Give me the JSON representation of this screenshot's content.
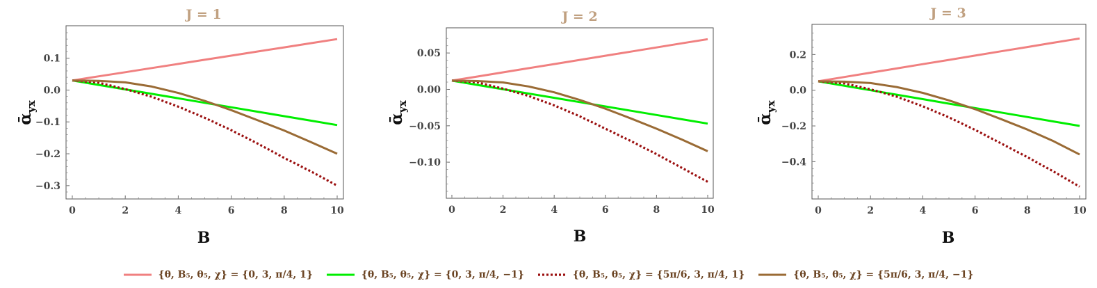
{
  "chart_data": [
    {
      "type": "line",
      "title": "J = 1",
      "xlabel": "B",
      "ylabel": "ᾱ",
      "ylabel_sub": "yx",
      "xlim": [
        0,
        10
      ],
      "ylim": [
        -0.32,
        0.18
      ],
      "xticks": [
        0,
        2,
        4,
        6,
        8,
        10
      ],
      "xtick_labels": [
        "0",
        "2",
        "4",
        "6",
        "8",
        "10"
      ],
      "yticks": [
        0.1,
        0.0,
        -0.1,
        -0.2,
        -0.3
      ],
      "ytick_labels": [
        "0.1",
        "0.0",
        "−0.1",
        "−0.2",
        "−0.3"
      ],
      "x": [
        0,
        1,
        2,
        3,
        4,
        5,
        6,
        7,
        8,
        9,
        10
      ],
      "series": [
        {
          "name": "{θ, B₅, θ₅, χ} = {0, 3, π/4, 1}",
          "color": "#f08080",
          "dash": "solid",
          "values": [
            0.03,
            0.043,
            0.056,
            0.069,
            0.082,
            0.095,
            0.108,
            0.121,
            0.134,
            0.147,
            0.16
          ]
        },
        {
          "name": "{θ, B₅, θ₅, χ} = {0, 3, π/4, −1}",
          "color": "#00ee00",
          "dash": "solid",
          "values": [
            0.03,
            0.016,
            0.002,
            -0.012,
            -0.026,
            -0.04,
            -0.054,
            -0.068,
            -0.082,
            -0.096,
            -0.11
          ]
        },
        {
          "name": "{θ, B₅, θ₅, χ} = {5π/6, 3, π/4, 1}",
          "color": "#9b1010",
          "dash": "dotted",
          "values": [
            0.03,
            0.023,
            0.003,
            -0.021,
            -0.052,
            -0.087,
            -0.126,
            -0.168,
            -0.213,
            -0.255,
            -0.3
          ]
        },
        {
          "name": "{θ, B₅, θ₅, χ} = {5π/6, 3, π/4, −1}",
          "color": "#9a6b35",
          "dash": "solid",
          "values": [
            0.03,
            0.029,
            0.024,
            0.011,
            -0.009,
            -0.034,
            -0.063,
            -0.095,
            -0.127,
            -0.163,
            -0.2
          ]
        }
      ]
    },
    {
      "type": "line",
      "title": "J = 2",
      "xlabel": "B",
      "ylabel": "ᾱ",
      "ylabel_sub": "yx",
      "xlim": [
        0,
        10
      ],
      "ylim": [
        -0.14,
        0.075
      ],
      "xticks": [
        0,
        2,
        4,
        6,
        8,
        10
      ],
      "xtick_labels": [
        "0",
        "2",
        "4",
        "6",
        "8",
        "10"
      ],
      "yticks": [
        0.05,
        0.0,
        -0.05,
        -0.1
      ],
      "ytick_labels": [
        "0.05",
        "0.00",
        "−0.05",
        "−0.10"
      ],
      "x": [
        0,
        1,
        2,
        3,
        4,
        5,
        6,
        7,
        8,
        9,
        10
      ],
      "series": [
        {
          "name": "{θ, B₅, θ₅, χ} = {0, 3, π/4, 1}",
          "color": "#f08080",
          "dash": "solid",
          "values": [
            0.012,
            0.0177,
            0.0234,
            0.0291,
            0.0348,
            0.0405,
            0.0462,
            0.0519,
            0.0576,
            0.0633,
            0.069
          ]
        },
        {
          "name": "{θ, B₅, θ₅, χ} = {0, 3, π/4, −1}",
          "color": "#00ee00",
          "dash": "solid",
          "values": [
            0.012,
            0.0061,
            0.0002,
            -0.0057,
            -0.0116,
            -0.0175,
            -0.0234,
            -0.0293,
            -0.0352,
            -0.0411,
            -0.047
          ]
        },
        {
          "name": "{θ, B₅, θ₅, χ} = {5π/6, 3, π/4, 1}",
          "color": "#9b1010",
          "dash": "dotted",
          "values": [
            0.012,
            0.0095,
            0.001,
            -0.009,
            -0.022,
            -0.037,
            -0.054,
            -0.071,
            -0.089,
            -0.108,
            -0.127
          ]
        },
        {
          "name": "{θ, B₅, θ₅, χ} = {5π/6, 3, π/4, −1}",
          "color": "#9a6b35",
          "dash": "solid",
          "values": [
            0.012,
            0.0115,
            0.0095,
            0.004,
            -0.004,
            -0.0145,
            -0.0265,
            -0.04,
            -0.054,
            -0.069,
            -0.085
          ]
        }
      ]
    },
    {
      "type": "line",
      "title": "J = 3",
      "xlabel": "B",
      "ylabel": "ᾱ",
      "ylabel_sub": "yx",
      "xlim": [
        0,
        10
      ],
      "ylim": [
        -0.57,
        0.33
      ],
      "xticks": [
        0,
        2,
        4,
        6,
        8,
        10
      ],
      "xtick_labels": [
        "0",
        "2",
        "4",
        "6",
        "8",
        "10"
      ],
      "yticks": [
        0.2,
        0.0,
        -0.2,
        -0.4
      ],
      "ytick_labels": [
        "0.2",
        "0.0",
        "−0.2",
        "−0.4"
      ],
      "x": [
        0,
        1,
        2,
        3,
        4,
        5,
        6,
        7,
        8,
        9,
        10
      ],
      "series": [
        {
          "name": "{θ, B₅, θ₅, χ} = {0, 3, π/4, 1}",
          "color": "#f08080",
          "dash": "solid",
          "values": [
            0.05,
            0.074,
            0.098,
            0.122,
            0.146,
            0.17,
            0.194,
            0.218,
            0.242,
            0.266,
            0.29
          ]
        },
        {
          "name": "{θ, B₅, θ₅, χ} = {0, 3, π/4, −1}",
          "color": "#00ee00",
          "dash": "solid",
          "values": [
            0.05,
            0.025,
            0.0,
            -0.025,
            -0.05,
            -0.075,
            -0.1,
            -0.125,
            -0.15,
            -0.175,
            -0.2
          ]
        },
        {
          "name": "{θ, B₅, θ₅, χ} = {5π/6, 3, π/4, 1}",
          "color": "#9b1010",
          "dash": "dotted",
          "values": [
            0.05,
            0.038,
            0.005,
            -0.036,
            -0.09,
            -0.152,
            -0.222,
            -0.298,
            -0.375,
            -0.455,
            -0.54
          ]
        },
        {
          "name": "{θ, B₅, θ₅, χ} = {5π/6, 3, π/4, −1}",
          "color": "#9a6b35",
          "dash": "solid",
          "values": [
            0.05,
            0.048,
            0.04,
            0.018,
            -0.015,
            -0.057,
            -0.106,
            -0.162,
            -0.22,
            -0.285,
            -0.36
          ]
        }
      ]
    }
  ],
  "legend": [
    {
      "label": "{θ, B₅, θ₅, χ} = {0, 3, π/4, 1}",
      "color": "#f08080",
      "dash": "solid"
    },
    {
      "label": "{θ, B₅, θ₅, χ} = {0, 3, π/4, −1}",
      "color": "#00ee00",
      "dash": "solid"
    },
    {
      "label": "{θ, B₅, θ₅, χ} = {5π/6, 3, π/4, 1}",
      "color": "#9b1010",
      "dash": "dotted"
    },
    {
      "label": "{θ, B₅, θ₅, χ} = {5π/6, 3, π/4, −1}",
      "color": "#9a6b35",
      "dash": "solid"
    }
  ]
}
